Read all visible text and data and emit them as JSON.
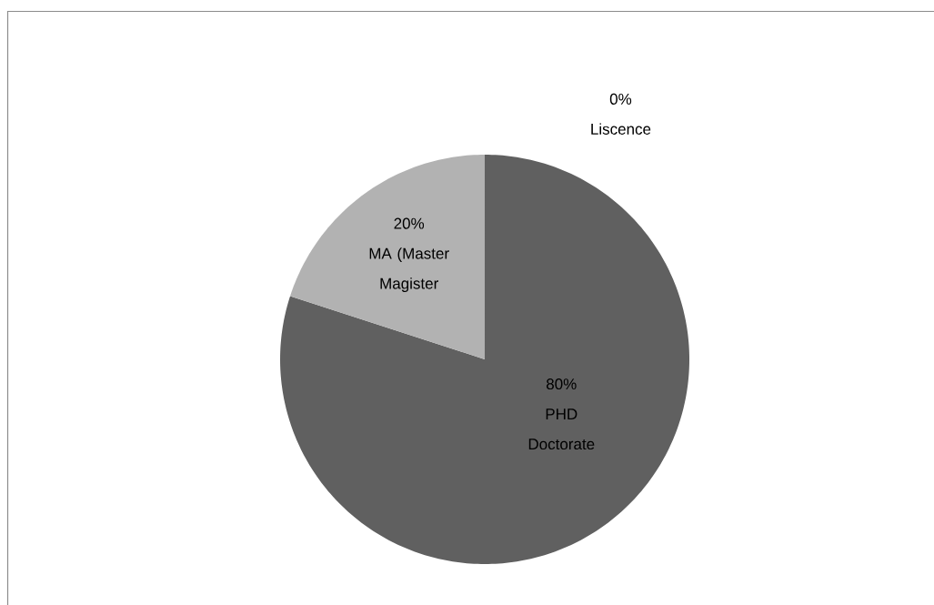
{
  "chart_data": {
    "type": "pie",
    "categories": [
      "Liscence",
      "PHD Doctorate",
      "MA (Master Magister"
    ],
    "values": [
      0,
      80,
      20
    ],
    "colors": [
      null,
      "#606060",
      "#b2b2b2"
    ],
    "value_labels": [
      "0%",
      "80%",
      "20%"
    ]
  }
}
